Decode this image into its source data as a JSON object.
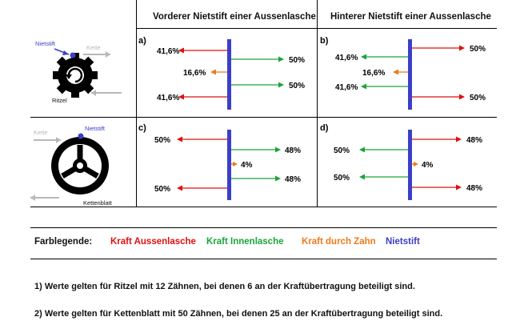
{
  "headers": {
    "front": "Vorderer Nietstift einer Aussenlasche",
    "rear": "Hinterer Nietstift einer Aussenlasche"
  },
  "colors": {
    "red": "#e01010",
    "green": "#1aa53a",
    "orange": "#ee7a1a",
    "blue": "#3a3fc8",
    "gray": "#b8b8b8"
  },
  "illustrations": {
    "sprocket": {
      "rivet_label": "Nietstift",
      "chain_label": "Kette",
      "name_label": "Ritzel"
    },
    "chainring": {
      "rivet_label": "Nietstift",
      "chain_label": "Kette",
      "name_label": "Kettenblatt"
    }
  },
  "panels": {
    "a": {
      "label": "a)",
      "top_left": "41,6%",
      "right_1": "50%",
      "mid_left": "16,6%",
      "right_2": "50%",
      "bottom_left": "41,6%"
    },
    "b": {
      "label": "b)",
      "top_right": "50%",
      "left_1": "41,6%",
      "mid_left": "16,6%",
      "left_2": "41,6%",
      "bottom_right": "50%"
    },
    "c": {
      "label": "c)",
      "top_left": "50%",
      "right_1": "48%",
      "mid_right": "4%",
      "right_2": "48%",
      "bottom_left": "50%"
    },
    "d": {
      "label": "d)",
      "top_right": "48%",
      "left_1": "50%",
      "mid_right": "4%",
      "left_2": "50%",
      "bottom_right": "48%"
    }
  },
  "legend": {
    "title": "Farblegende:",
    "outer": "Kraft Aussenlasche",
    "inner": "Kraft Innenlasche",
    "tooth": "Kraft durch Zahn",
    "pin": "Nietstift"
  },
  "notes": {
    "note1": "1) Werte gelten für Ritzel mit 12 Zähnen, bei denen 6 an der Kraftübertragung beteiligt sind.",
    "note2": "2) Werte gelten für Kettenblatt mit 50 Zähnen, bei denen 25 an der Kraftübertragung beteiligt sind."
  }
}
